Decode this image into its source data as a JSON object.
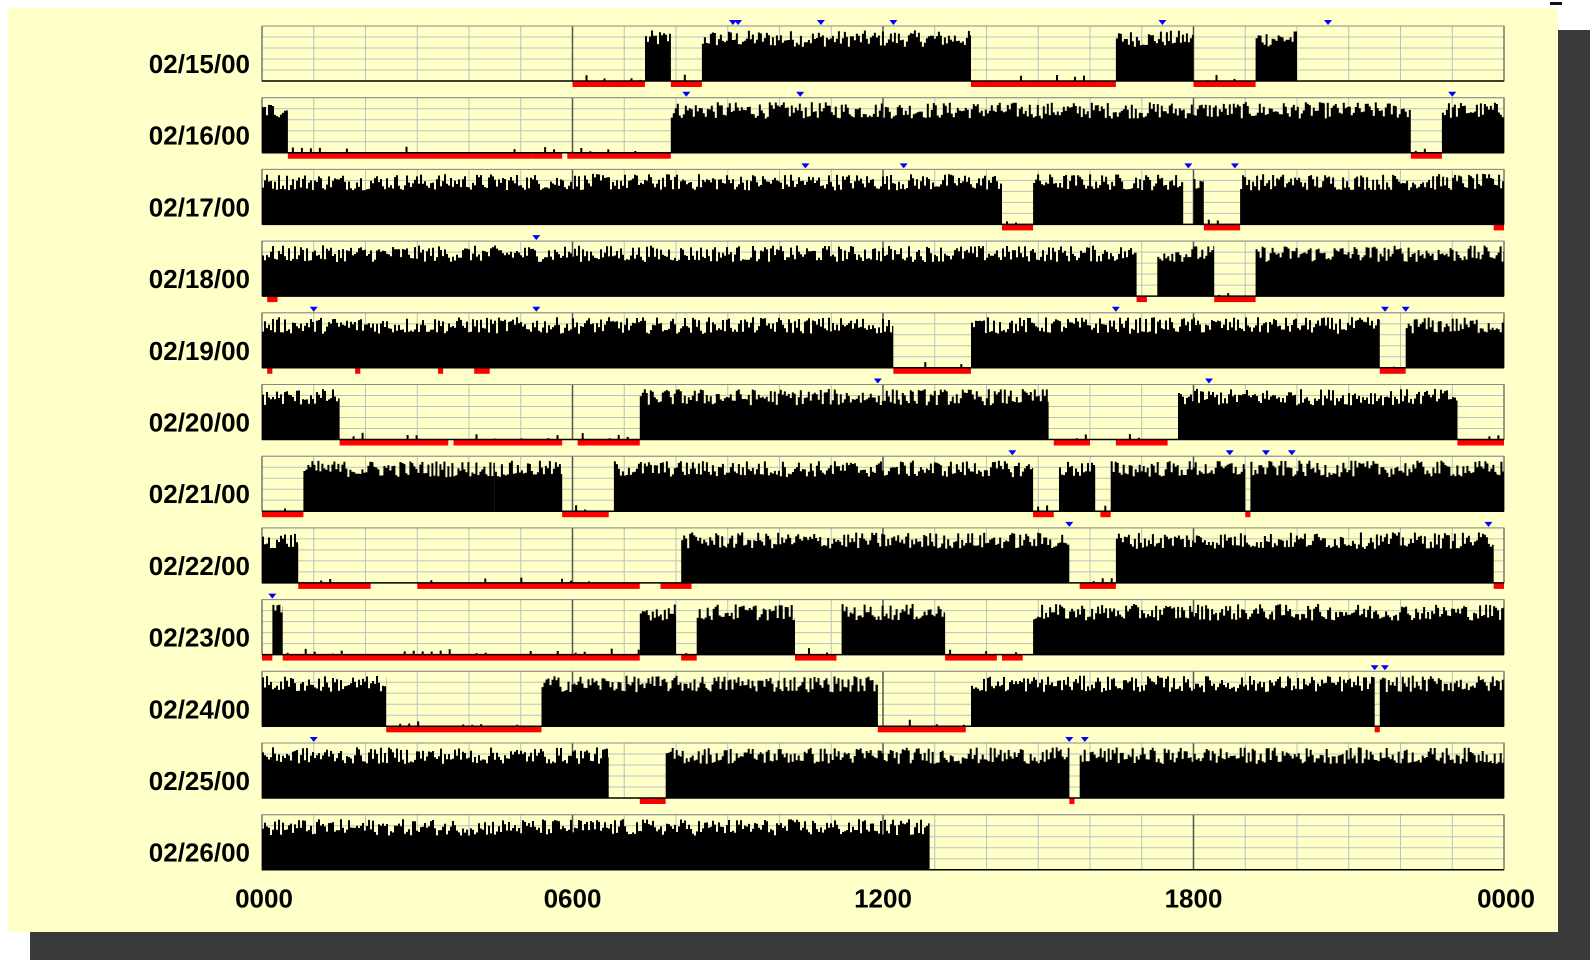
{
  "chart_data": {
    "type": "bar",
    "description_type": "daily activity raster (actogram)",
    "x_ticks": [
      "0000",
      "0600",
      "1200",
      "1800",
      "0000"
    ],
    "x_range_hours": [
      0,
      24
    ],
    "grid": true,
    "colors": {
      "background": "#ffffc8",
      "activity": "#000000",
      "rest_marker": "#ff0000",
      "event_marker": "#0000ff",
      "grid": "#bfbfbf",
      "frame": "#888888"
    },
    "days": [
      {
        "date": "02/15/00",
        "active": [
          [
            7.4,
            7.9
          ],
          [
            8.5,
            13.7
          ],
          [
            16.5,
            18.0
          ],
          [
            19.2,
            20.0
          ]
        ],
        "rest": [
          [
            6.0,
            7.4
          ],
          [
            7.9,
            8.5
          ],
          [
            13.7,
            16.5
          ],
          [
            18.0,
            19.2
          ]
        ],
        "events": [
          9.1,
          9.2,
          10.8,
          12.2,
          17.4,
          20.6
        ]
      },
      {
        "date": "02/16/00",
        "active": [
          [
            0.0,
            0.5
          ],
          [
            7.9,
            22.2
          ],
          [
            22.8,
            24.0
          ]
        ],
        "rest": [
          [
            0.5,
            2.0
          ],
          [
            2.0,
            5.2
          ],
          [
            5.2,
            5.8
          ],
          [
            5.9,
            7.9
          ],
          [
            22.2,
            22.8
          ]
        ],
        "events": [
          8.2,
          10.4,
          23.0
        ]
      },
      {
        "date": "02/17/00",
        "active": [
          [
            0.0,
            14.3
          ],
          [
            14.9,
            17.8
          ],
          [
            18.0,
            18.2
          ],
          [
            18.9,
            24.0
          ]
        ],
        "rest": [
          [
            14.3,
            14.9
          ],
          [
            18.2,
            18.9
          ],
          [
            23.8,
            24.0
          ]
        ],
        "events": [
          10.5,
          12.4,
          17.9,
          18.8
        ]
      },
      {
        "date": "02/18/00",
        "active": [
          [
            0.0,
            16.9
          ],
          [
            17.3,
            18.4
          ],
          [
            19.2,
            24.0
          ]
        ],
        "rest": [
          [
            0.1,
            0.3
          ],
          [
            16.9,
            17.1
          ],
          [
            18.4,
            19.2
          ]
        ],
        "events": [
          5.3
        ]
      },
      {
        "date": "02/19/00",
        "active": [
          [
            0.0,
            12.2
          ],
          [
            13.7,
            21.6
          ],
          [
            22.1,
            24.0
          ]
        ],
        "rest": [
          [
            0.1,
            0.2
          ],
          [
            1.8,
            1.9
          ],
          [
            3.4,
            3.5
          ],
          [
            4.1,
            4.4
          ],
          [
            12.2,
            13.7
          ],
          [
            21.6,
            22.1
          ]
        ],
        "events": [
          1.0,
          5.3,
          16.5,
          21.7,
          22.1
        ]
      },
      {
        "date": "02/20/00",
        "active": [
          [
            0.0,
            1.5
          ],
          [
            7.3,
            15.2
          ],
          [
            17.7,
            23.1
          ]
        ],
        "rest": [
          [
            1.5,
            3.6
          ],
          [
            3.7,
            5.8
          ],
          [
            6.1,
            7.3
          ],
          [
            15.3,
            16.0
          ],
          [
            16.5,
            17.5
          ],
          [
            23.1,
            24.0
          ]
        ],
        "events": [
          11.9,
          18.3
        ]
      },
      {
        "date": "02/21/00",
        "active": [
          [
            0.8,
            4.5
          ],
          [
            4.5,
            5.8
          ],
          [
            6.8,
            14.9
          ],
          [
            15.4,
            16.1
          ],
          [
            16.4,
            19.0
          ],
          [
            19.1,
            24.0
          ]
        ],
        "rest": [
          [
            0.0,
            0.8
          ],
          [
            5.8,
            6.7
          ],
          [
            14.9,
            15.3
          ],
          [
            16.2,
            16.4
          ],
          [
            19.0,
            19.1
          ]
        ],
        "events": [
          14.5,
          18.7,
          19.4,
          19.9
        ]
      },
      {
        "date": "02/22/00",
        "active": [
          [
            0.0,
            0.7
          ],
          [
            8.1,
            15.6
          ],
          [
            16.5,
            23.8
          ]
        ],
        "rest": [
          [
            0.7,
            2.1
          ],
          [
            3.0,
            5.7
          ],
          [
            5.7,
            7.3
          ],
          [
            7.7,
            8.3
          ],
          [
            15.8,
            16.5
          ],
          [
            23.8,
            24.0
          ]
        ],
        "events": [
          15.6,
          23.7
        ]
      },
      {
        "date": "02/23/00",
        "active": [
          [
            0.2,
            0.4
          ],
          [
            7.3,
            8.0
          ],
          [
            8.4,
            10.3
          ],
          [
            11.2,
            13.2
          ],
          [
            14.9,
            24.0
          ]
        ],
        "rest": [
          [
            0.0,
            0.2
          ],
          [
            0.4,
            7.3
          ],
          [
            8.1,
            8.4
          ],
          [
            10.3,
            11.1
          ],
          [
            13.2,
            14.2
          ],
          [
            14.3,
            14.7
          ]
        ],
        "events": [
          0.2
        ]
      },
      {
        "date": "02/24/00",
        "active": [
          [
            0.0,
            2.4
          ],
          [
            5.4,
            11.9
          ],
          [
            13.7,
            21.5
          ],
          [
            21.6,
            24.0
          ]
        ],
        "rest": [
          [
            2.4,
            5.4
          ],
          [
            11.9,
            13.6
          ],
          [
            21.5,
            21.6
          ]
        ],
        "events": [
          21.5,
          21.7
        ]
      },
      {
        "date": "02/25/00",
        "active": [
          [
            0.0,
            6.7
          ],
          [
            7.8,
            15.6
          ],
          [
            15.8,
            24.0
          ]
        ],
        "rest": [
          [
            7.3,
            7.8
          ],
          [
            15.6,
            15.7
          ]
        ],
        "events": [
          1.0,
          15.6,
          15.9
        ]
      },
      {
        "date": "02/26/00",
        "active": [
          [
            0.0,
            12.9
          ]
        ],
        "rest": [],
        "events": []
      }
    ]
  }
}
